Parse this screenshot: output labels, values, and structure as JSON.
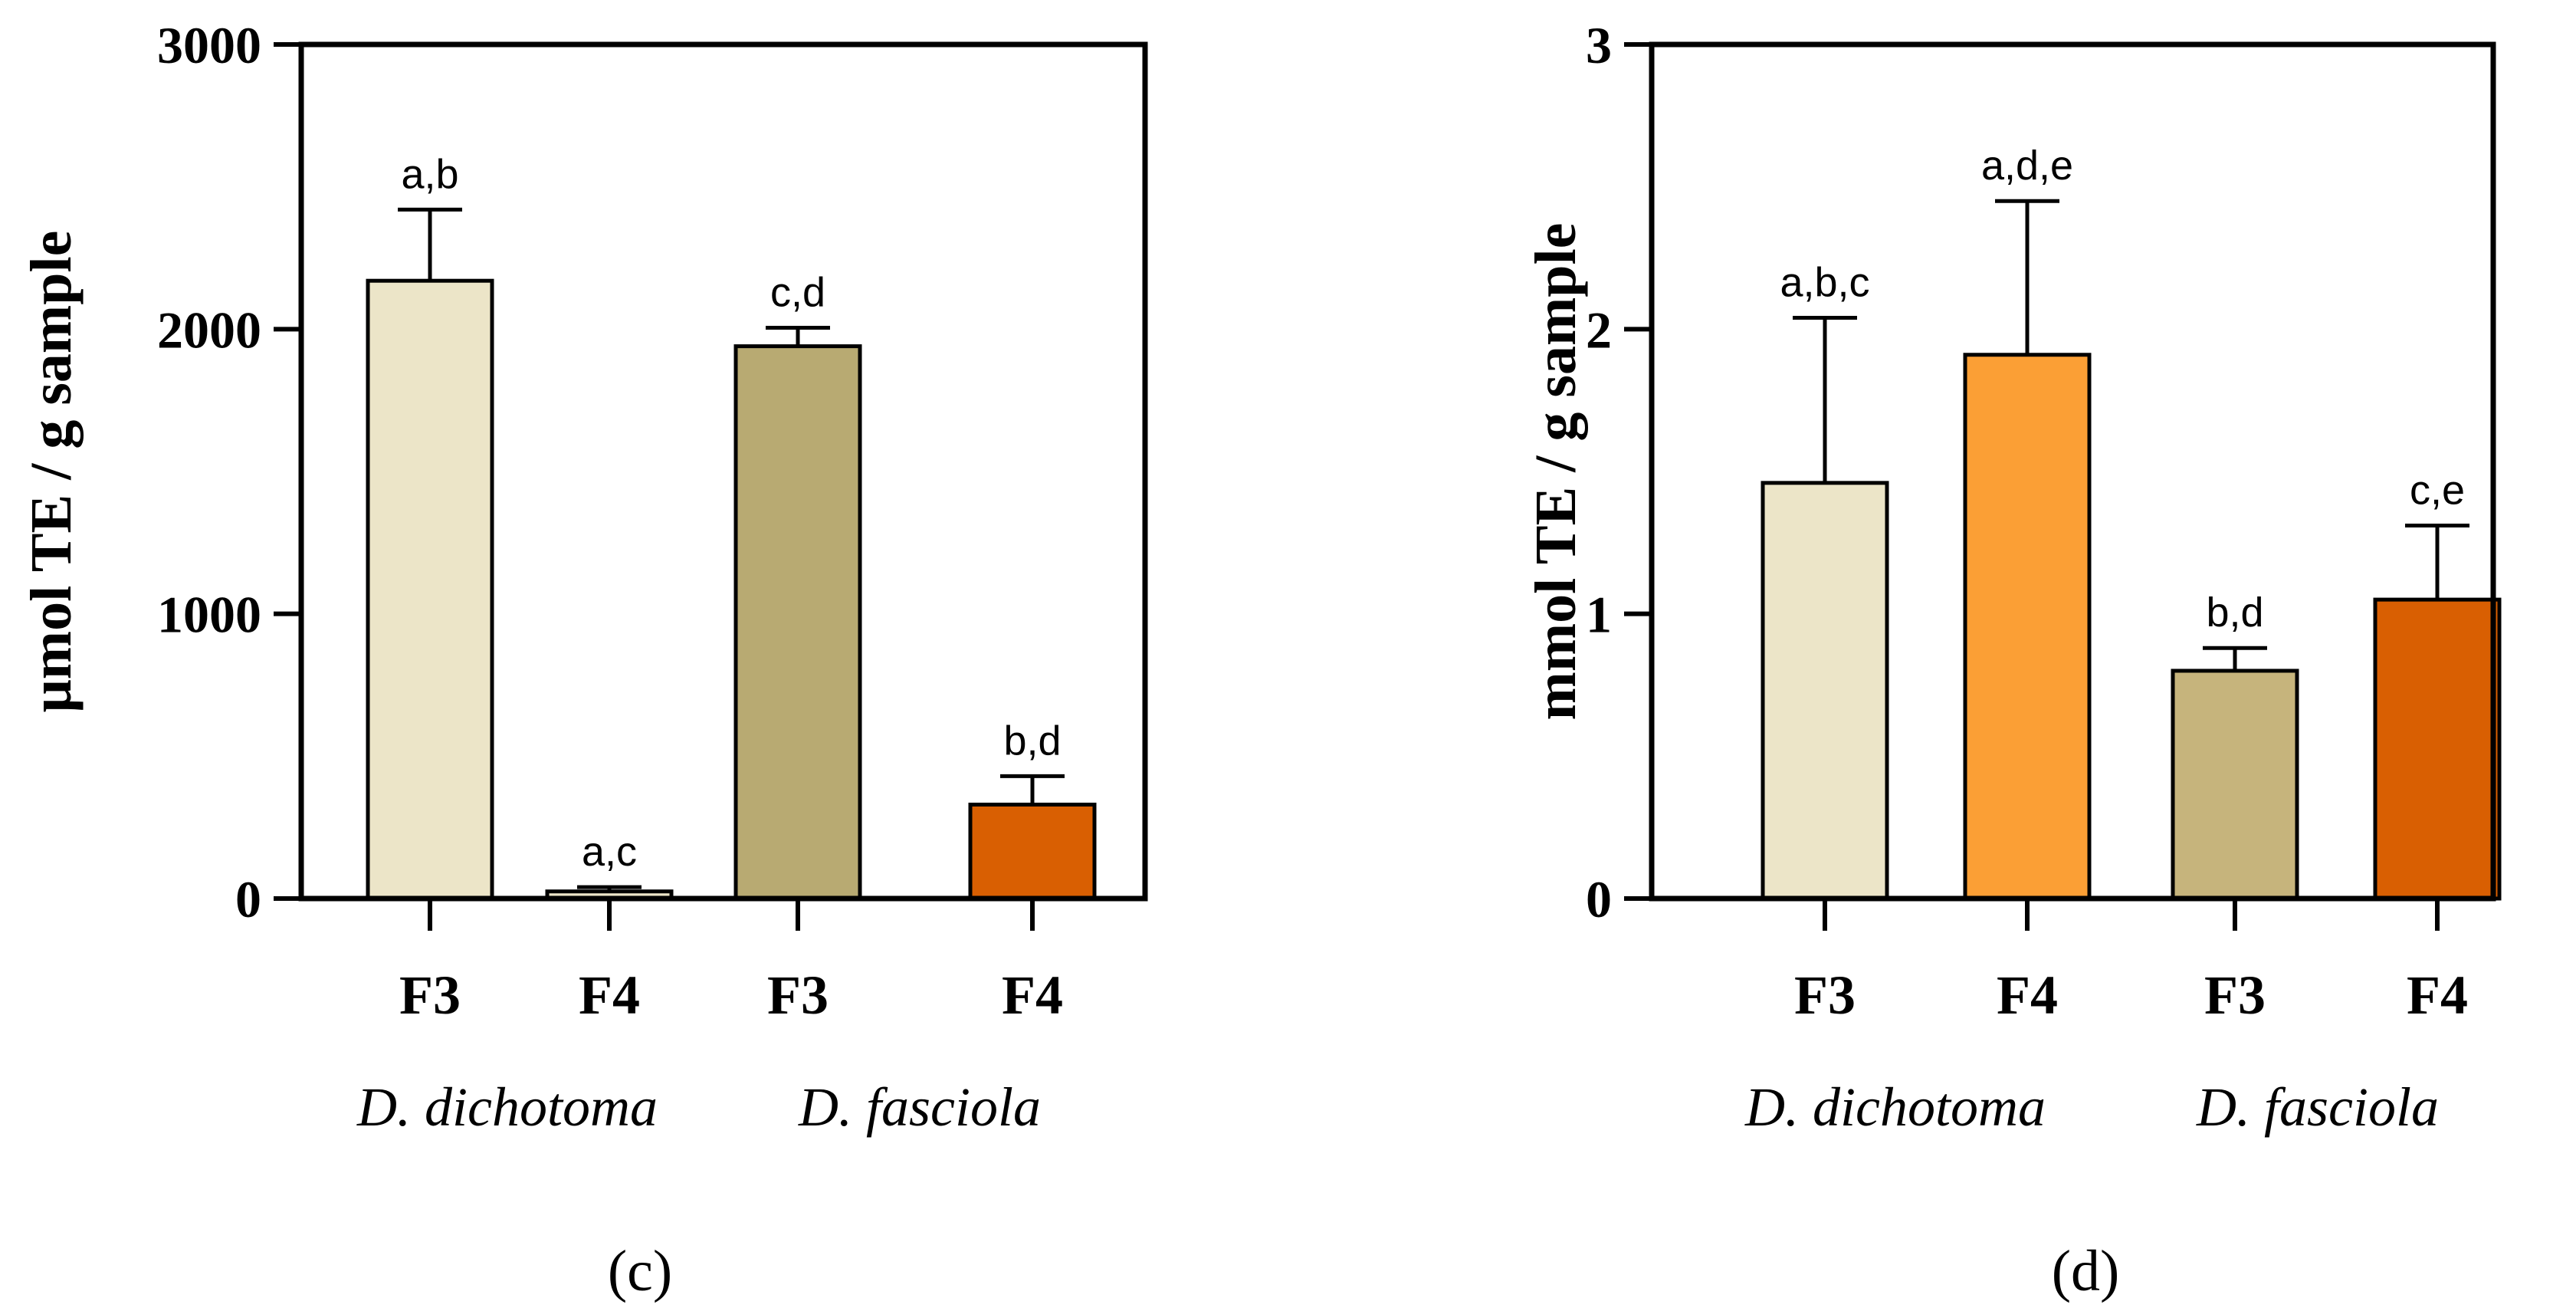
{
  "chart_data": [
    {
      "type": "bar",
      "panel_label": "(c)",
      "ylabel": "μmol TE / g sample",
      "ylim": [
        0,
        3000
      ],
      "yticks": [
        0,
        1000,
        2000,
        3000
      ],
      "ytick_labels": [
        "0",
        "1000",
        "2000",
        "3000"
      ],
      "categories": [
        "F3",
        "F4",
        "F3",
        "F4"
      ],
      "groups": [
        "D. dichotoma",
        "D. fasciola"
      ],
      "values": [
        2170,
        25,
        1940,
        330
      ],
      "errors": [
        250,
        15,
        65,
        100
      ],
      "annotations": [
        "a,b",
        "a,c",
        "c,d",
        "b,d"
      ],
      "colors": [
        "#ece5c8",
        "#ece5c8",
        "#b8aa72",
        "#d95f02"
      ]
    },
    {
      "type": "bar",
      "panel_label": "(d)",
      "ylabel": "mmol TE / g sample",
      "ylim": [
        0,
        3
      ],
      "yticks": [
        0,
        1,
        2,
        3
      ],
      "ytick_labels": [
        "0",
        "1",
        "2",
        "3"
      ],
      "categories": [
        "F3",
        "F4",
        "F3",
        "F4"
      ],
      "groups": [
        "D. dichotoma",
        "D. fasciola"
      ],
      "values": [
        1.46,
        1.91,
        0.8,
        1.05
      ],
      "errors": [
        0.58,
        0.54,
        0.08,
        0.26
      ],
      "annotations": [
        "a,b,c",
        "a,d,e",
        "b,d",
        "c,e"
      ],
      "colors": [
        "#ece5c8",
        "#fb9f35",
        "#c6b47c",
        "#d95f02"
      ]
    }
  ]
}
